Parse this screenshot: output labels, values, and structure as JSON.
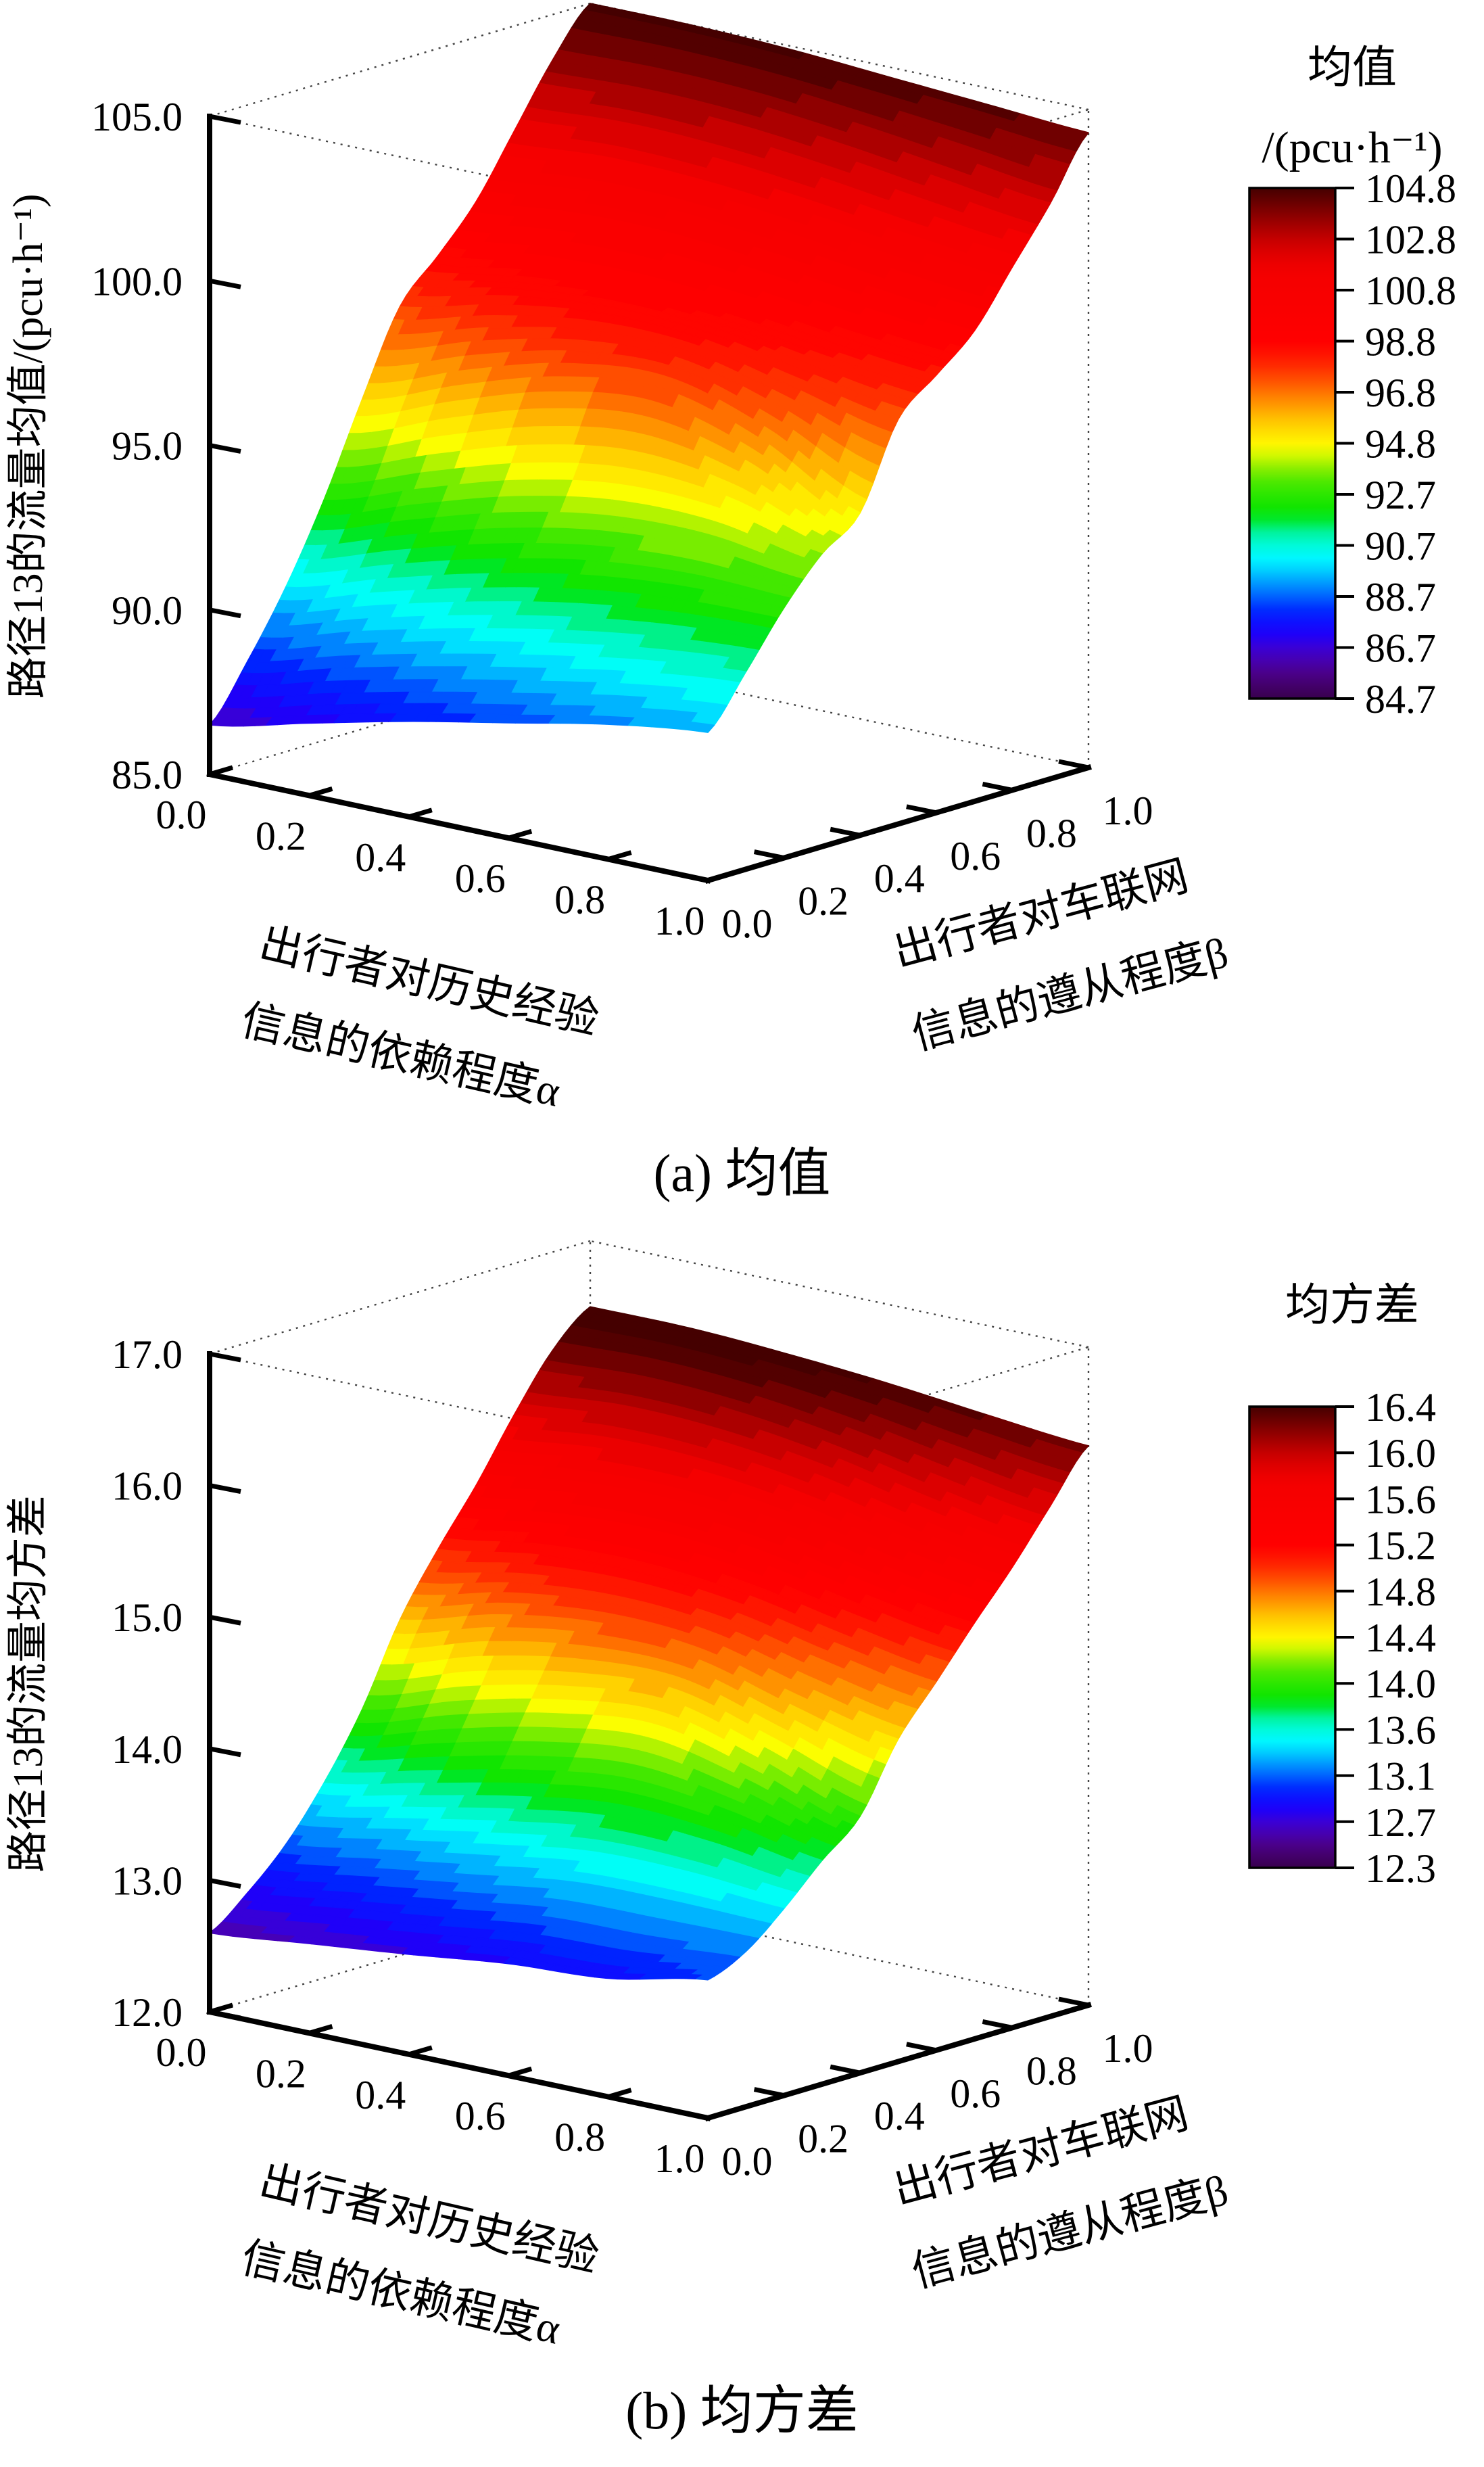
{
  "page": {
    "background": "#ffffff",
    "accent_black": "#000000"
  },
  "colormap": {
    "stops": [
      [
        0.0,
        "#38004d"
      ],
      [
        0.045,
        "#4b0082"
      ],
      [
        0.09,
        "#4400c8"
      ],
      [
        0.13,
        "#1a00ff"
      ],
      [
        0.17,
        "#0022ff"
      ],
      [
        0.21,
        "#0077ff"
      ],
      [
        0.25,
        "#00ccff"
      ],
      [
        0.28,
        "#00ffff"
      ],
      [
        0.32,
        "#00f5b4"
      ],
      [
        0.36,
        "#00e400"
      ],
      [
        0.42,
        "#42e800"
      ],
      [
        0.46,
        "#a0f000"
      ],
      [
        0.49,
        "#ffff00"
      ],
      [
        0.54,
        "#ffcc00"
      ],
      [
        0.58,
        "#ff9100"
      ],
      [
        0.62,
        "#ff5500"
      ],
      [
        0.66,
        "#ff1e00"
      ],
      [
        0.7,
        "#ff0000"
      ],
      [
        0.84,
        "#f40000"
      ],
      [
        0.89,
        "#d10000"
      ],
      [
        0.93,
        "#a00000"
      ],
      [
        0.97,
        "#6b0000"
      ],
      [
        1.0,
        "#450000"
      ]
    ]
  },
  "charts": [
    {
      "caption": "(a) 均值",
      "z_axis": {
        "label": "路径13的流量均值/(pcu·h⁻¹)",
        "ticks": [
          "85.0",
          "90.0",
          "95.0",
          "100.0",
          "105.0"
        ]
      },
      "alpha_axis": {
        "label_lines": [
          "出行者对历史经验",
          "信息的依赖程度α"
        ],
        "ticks": [
          "0.0",
          "0.2",
          "0.4",
          "0.6",
          "0.8",
          "1.0"
        ]
      },
      "beta_axis": {
        "label_lines": [
          "出行者对车联网",
          "信息的遵从程度β"
        ],
        "ticks": [
          "0.0",
          "0.2",
          "0.4",
          "0.6",
          "0.8",
          "1.0"
        ]
      },
      "colorbar": {
        "title_lines": [
          "均值",
          "/(pcu·h⁻¹)"
        ],
        "tick_labels": [
          "104.8",
          "102.8",
          "100.8",
          "98.8",
          "96.8",
          "94.8",
          "92.7",
          "90.7",
          "88.7",
          "86.7",
          "84.7"
        ]
      }
    },
    {
      "caption": "(b) 均方差",
      "z_axis": {
        "label": "路径13的流量均方差",
        "ticks": [
          "12.0",
          "13.0",
          "14.0",
          "15.0",
          "16.0",
          "17.0"
        ]
      },
      "alpha_axis": {
        "label_lines": [
          "出行者对历史经验",
          "信息的依赖程度α"
        ],
        "ticks": [
          "0.0",
          "0.2",
          "0.4",
          "0.6",
          "0.8",
          "1.0"
        ]
      },
      "beta_axis": {
        "label_lines": [
          "出行者对车联网",
          "信息的遵从程度β"
        ],
        "ticks": [
          "0.0",
          "0.2",
          "0.4",
          "0.6",
          "0.8",
          "1.0"
        ]
      },
      "colorbar": {
        "title_lines": [
          "均方差"
        ],
        "tick_labels": [
          "16.4",
          "16.0",
          "15.6",
          "15.2",
          "14.8",
          "14.4",
          "14.0",
          "13.6",
          "13.1",
          "12.7",
          "12.3"
        ]
      }
    }
  ],
  "chart_data": [
    {
      "type": "surface",
      "name": "mean-flow-route13",
      "title": "(a) 均值",
      "xlabel": "出行者对历史经验信息的依赖程度α",
      "ylabel": "出行者对车联网信息的遵从程度β",
      "zlabel": "路径13的流量均值/(pcu·h⁻¹)",
      "x": [
        0,
        0.2,
        0.4,
        0.6,
        0.8,
        1.0
      ],
      "y": [
        0,
        0.1,
        0.2,
        0.3,
        0.4,
        0.5,
        0.6,
        0.7,
        0.8,
        0.9,
        1.0
      ],
      "z": [
        [
          86.5,
          88.1,
          90.0,
          92.3,
          95.0,
          97.5,
          98.7,
          100.0,
          101.8,
          103.6,
          105.0
        ],
        [
          87.2,
          88.9,
          90.9,
          93.3,
          96.1,
          98.2,
          99.1,
          100.3,
          102.0,
          103.7,
          105.0
        ],
        [
          87.9,
          89.6,
          91.7,
          94.2,
          97.0,
          98.6,
          99.2,
          100.3,
          101.9,
          103.6,
          104.9
        ],
        [
          88.5,
          90.2,
          92.3,
          94.7,
          97.3,
          98.5,
          99.0,
          100.0,
          101.6,
          103.3,
          104.7
        ],
        [
          89.1,
          90.7,
          92.6,
          94.6,
          96.4,
          97.9,
          98.6,
          99.6,
          101.2,
          102.9,
          104.5
        ],
        [
          89.5,
          91.0,
          92.6,
          93.9,
          94.8,
          97.3,
          98.3,
          99.3,
          100.9,
          102.5,
          104.3
        ]
      ],
      "zlim": [
        85,
        105
      ],
      "clim": [
        84.7,
        104.8
      ]
    },
    {
      "type": "surface",
      "name": "msd-flow-route13",
      "title": "(b) 均方差",
      "xlabel": "出行者对历史经验信息的依赖程度α",
      "ylabel": "出行者对车联网信息的遵从程度β",
      "zlabel": "路径13的流量均方差",
      "x": [
        0,
        0.2,
        0.4,
        0.6,
        0.8,
        1.0
      ],
      "y": [
        0,
        0.1,
        0.2,
        0.3,
        0.4,
        0.5,
        0.6,
        0.7,
        0.8,
        0.9,
        1.0
      ],
      "z": [
        [
          12.6,
          12.82,
          13.1,
          13.48,
          13.95,
          14.55,
          15.0,
          15.4,
          15.85,
          16.25,
          16.5
        ],
        [
          12.68,
          12.92,
          13.22,
          13.64,
          14.18,
          14.75,
          15.12,
          15.5,
          15.92,
          16.28,
          16.5
        ],
        [
          12.76,
          13.02,
          13.34,
          13.8,
          14.35,
          14.85,
          15.15,
          15.52,
          15.9,
          16.24,
          16.46
        ],
        [
          12.85,
          13.12,
          13.45,
          13.9,
          14.42,
          14.82,
          15.08,
          15.44,
          15.8,
          16.14,
          16.4
        ],
        [
          12.9,
          13.14,
          13.46,
          13.84,
          14.22,
          14.62,
          14.93,
          15.28,
          15.63,
          16.0,
          16.32
        ],
        [
          13.05,
          13.18,
          13.42,
          13.7,
          13.95,
          14.45,
          14.8,
          15.16,
          15.5,
          15.88,
          16.25
        ]
      ],
      "zlim": [
        12,
        17
      ],
      "clim": [
        12.3,
        16.4
      ]
    }
  ]
}
